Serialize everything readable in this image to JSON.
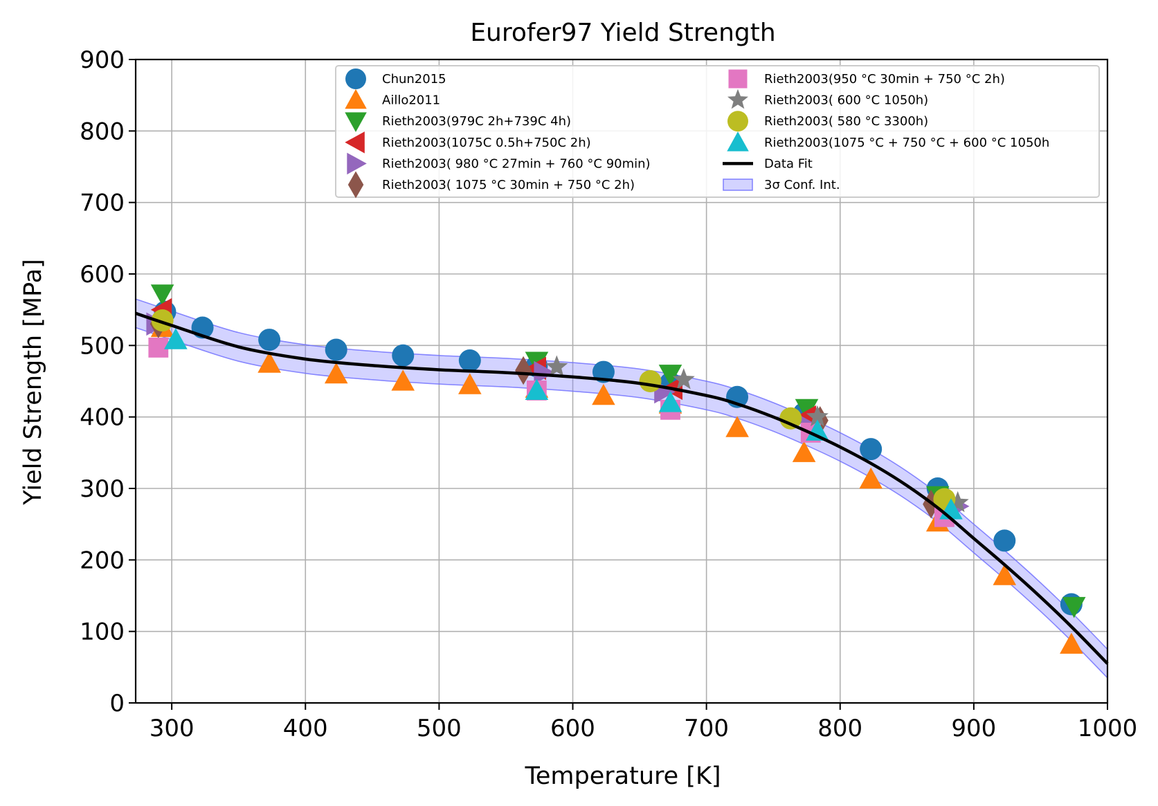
{
  "chart_data": {
    "type": "scatter",
    "title": "Eurofer97 Yield Strength",
    "xlabel": "Temperature [K]",
    "ylabel": "Yield Strength [MPa]",
    "xlim": [
      273,
      1000
    ],
    "ylim": [
      0,
      900
    ],
    "xticks": [
      300,
      400,
      500,
      600,
      700,
      800,
      900,
      1000
    ],
    "yticks": [
      0,
      100,
      200,
      300,
      400,
      500,
      600,
      700,
      800,
      900
    ],
    "grid": true,
    "legend_position": "top",
    "series": [
      {
        "name": "Chun2015",
        "marker": "circle",
        "color": "#1f77b4",
        "points": [
          [
            295,
            547
          ],
          [
            323,
            525
          ],
          [
            373,
            508
          ],
          [
            423,
            494
          ],
          [
            473,
            486
          ],
          [
            523,
            479
          ],
          [
            573,
            471
          ],
          [
            623,
            463
          ],
          [
            673,
            447
          ],
          [
            723,
            428
          ],
          [
            773,
            405
          ],
          [
            823,
            355
          ],
          [
            873,
            300
          ],
          [
            923,
            227
          ],
          [
            973,
            138
          ]
        ]
      },
      {
        "name": "Aillo2011",
        "marker": "triangle-up",
        "color": "#ff7f0e",
        "points": [
          [
            293,
            525
          ],
          [
            373,
            475
          ],
          [
            423,
            460
          ],
          [
            473,
            450
          ],
          [
            523,
            445
          ],
          [
            573,
            440
          ],
          [
            623,
            430
          ],
          [
            673,
            418
          ],
          [
            723,
            385
          ],
          [
            773,
            350
          ],
          [
            823,
            313
          ],
          [
            873,
            253
          ],
          [
            923,
            178
          ],
          [
            973,
            82
          ]
        ]
      },
      {
        "name": "Rieth2003(979C 2h+739C 4h)",
        "marker": "triangle-down",
        "color": "#2ca02c",
        "points": [
          [
            293,
            572
          ],
          [
            573,
            478
          ],
          [
            673,
            460
          ],
          [
            775,
            412
          ],
          [
            873,
            290
          ],
          [
            975,
            135
          ]
        ]
      },
      {
        "name": "Rieth2003(1075C 0.5h+750C 2h)",
        "marker": "triangle-left",
        "color": "#d62728",
        "points": [
          [
            293,
            550
          ],
          [
            573,
            468
          ],
          [
            675,
            440
          ],
          [
            775,
            400
          ],
          [
            875,
            282
          ]
        ]
      },
      {
        "name": "Rieth2003( 980 °C 27min + 760 °C 90min)",
        "marker": "triangle-right",
        "color": "#9467bd",
        "points": [
          [
            288,
            530
          ],
          [
            578,
            462
          ],
          [
            668,
            435
          ],
          [
            778,
            385
          ],
          [
            888,
            275
          ]
        ]
      },
      {
        "name": "Rieth2003( 1075 °C 30min + 750 °C 2h)",
        "marker": "diamond",
        "color": "#8c564b",
        "points": [
          [
            290,
            530
          ],
          [
            563,
            465
          ],
          [
            785,
            395
          ],
          [
            868,
            278
          ]
        ]
      },
      {
        "name": "Rieth2003(950 °C 30min + 750 °C 2h)",
        "marker": "square",
        "color": "#e377c2",
        "points": [
          [
            290,
            497
          ],
          [
            573,
            437
          ],
          [
            673,
            410
          ],
          [
            778,
            378
          ],
          [
            878,
            260
          ]
        ]
      },
      {
        "name": "Rieth2003( 600 °C 1050h)",
        "marker": "star",
        "color": "#7f7f7f",
        "points": [
          [
            588,
            470
          ],
          [
            683,
            452
          ],
          [
            783,
            400
          ],
          [
            888,
            280
          ]
        ]
      },
      {
        "name": "Rieth2003(  580 °C 3300h)",
        "marker": "circle",
        "color": "#bcbd22",
        "points": [
          [
            293,
            535
          ],
          [
            658,
            450
          ],
          [
            763,
            398
          ],
          [
            878,
            285
          ]
        ]
      },
      {
        "name": "Rieth2003(1075 °C + 750 °C + 600 °C 1050h",
        "marker": "triangle-up",
        "color": "#17becf",
        "points": [
          [
            303,
            508
          ],
          [
            573,
            437
          ],
          [
            673,
            420
          ],
          [
            783,
            380
          ],
          [
            883,
            270
          ]
        ]
      }
    ],
    "fit": {
      "name": "Data Fit",
      "color": "#000000",
      "points": [
        [
          273,
          545
        ],
        [
          300,
          528
        ],
        [
          350,
          498
        ],
        [
          400,
          481
        ],
        [
          450,
          472
        ],
        [
          500,
          466
        ],
        [
          550,
          462
        ],
        [
          600,
          456
        ],
        [
          650,
          447
        ],
        [
          700,
          430
        ],
        [
          725,
          417
        ],
        [
          750,
          400
        ],
        [
          775,
          380
        ],
        [
          800,
          358
        ],
        [
          825,
          333
        ],
        [
          850,
          304
        ],
        [
          875,
          270
        ],
        [
          900,
          230
        ],
        [
          925,
          190
        ],
        [
          950,
          148
        ],
        [
          975,
          103
        ],
        [
          1000,
          55
        ]
      ]
    },
    "band": {
      "name": "3σ Conf. Int.",
      "color": "#8080ff",
      "half_width": 20
    }
  }
}
